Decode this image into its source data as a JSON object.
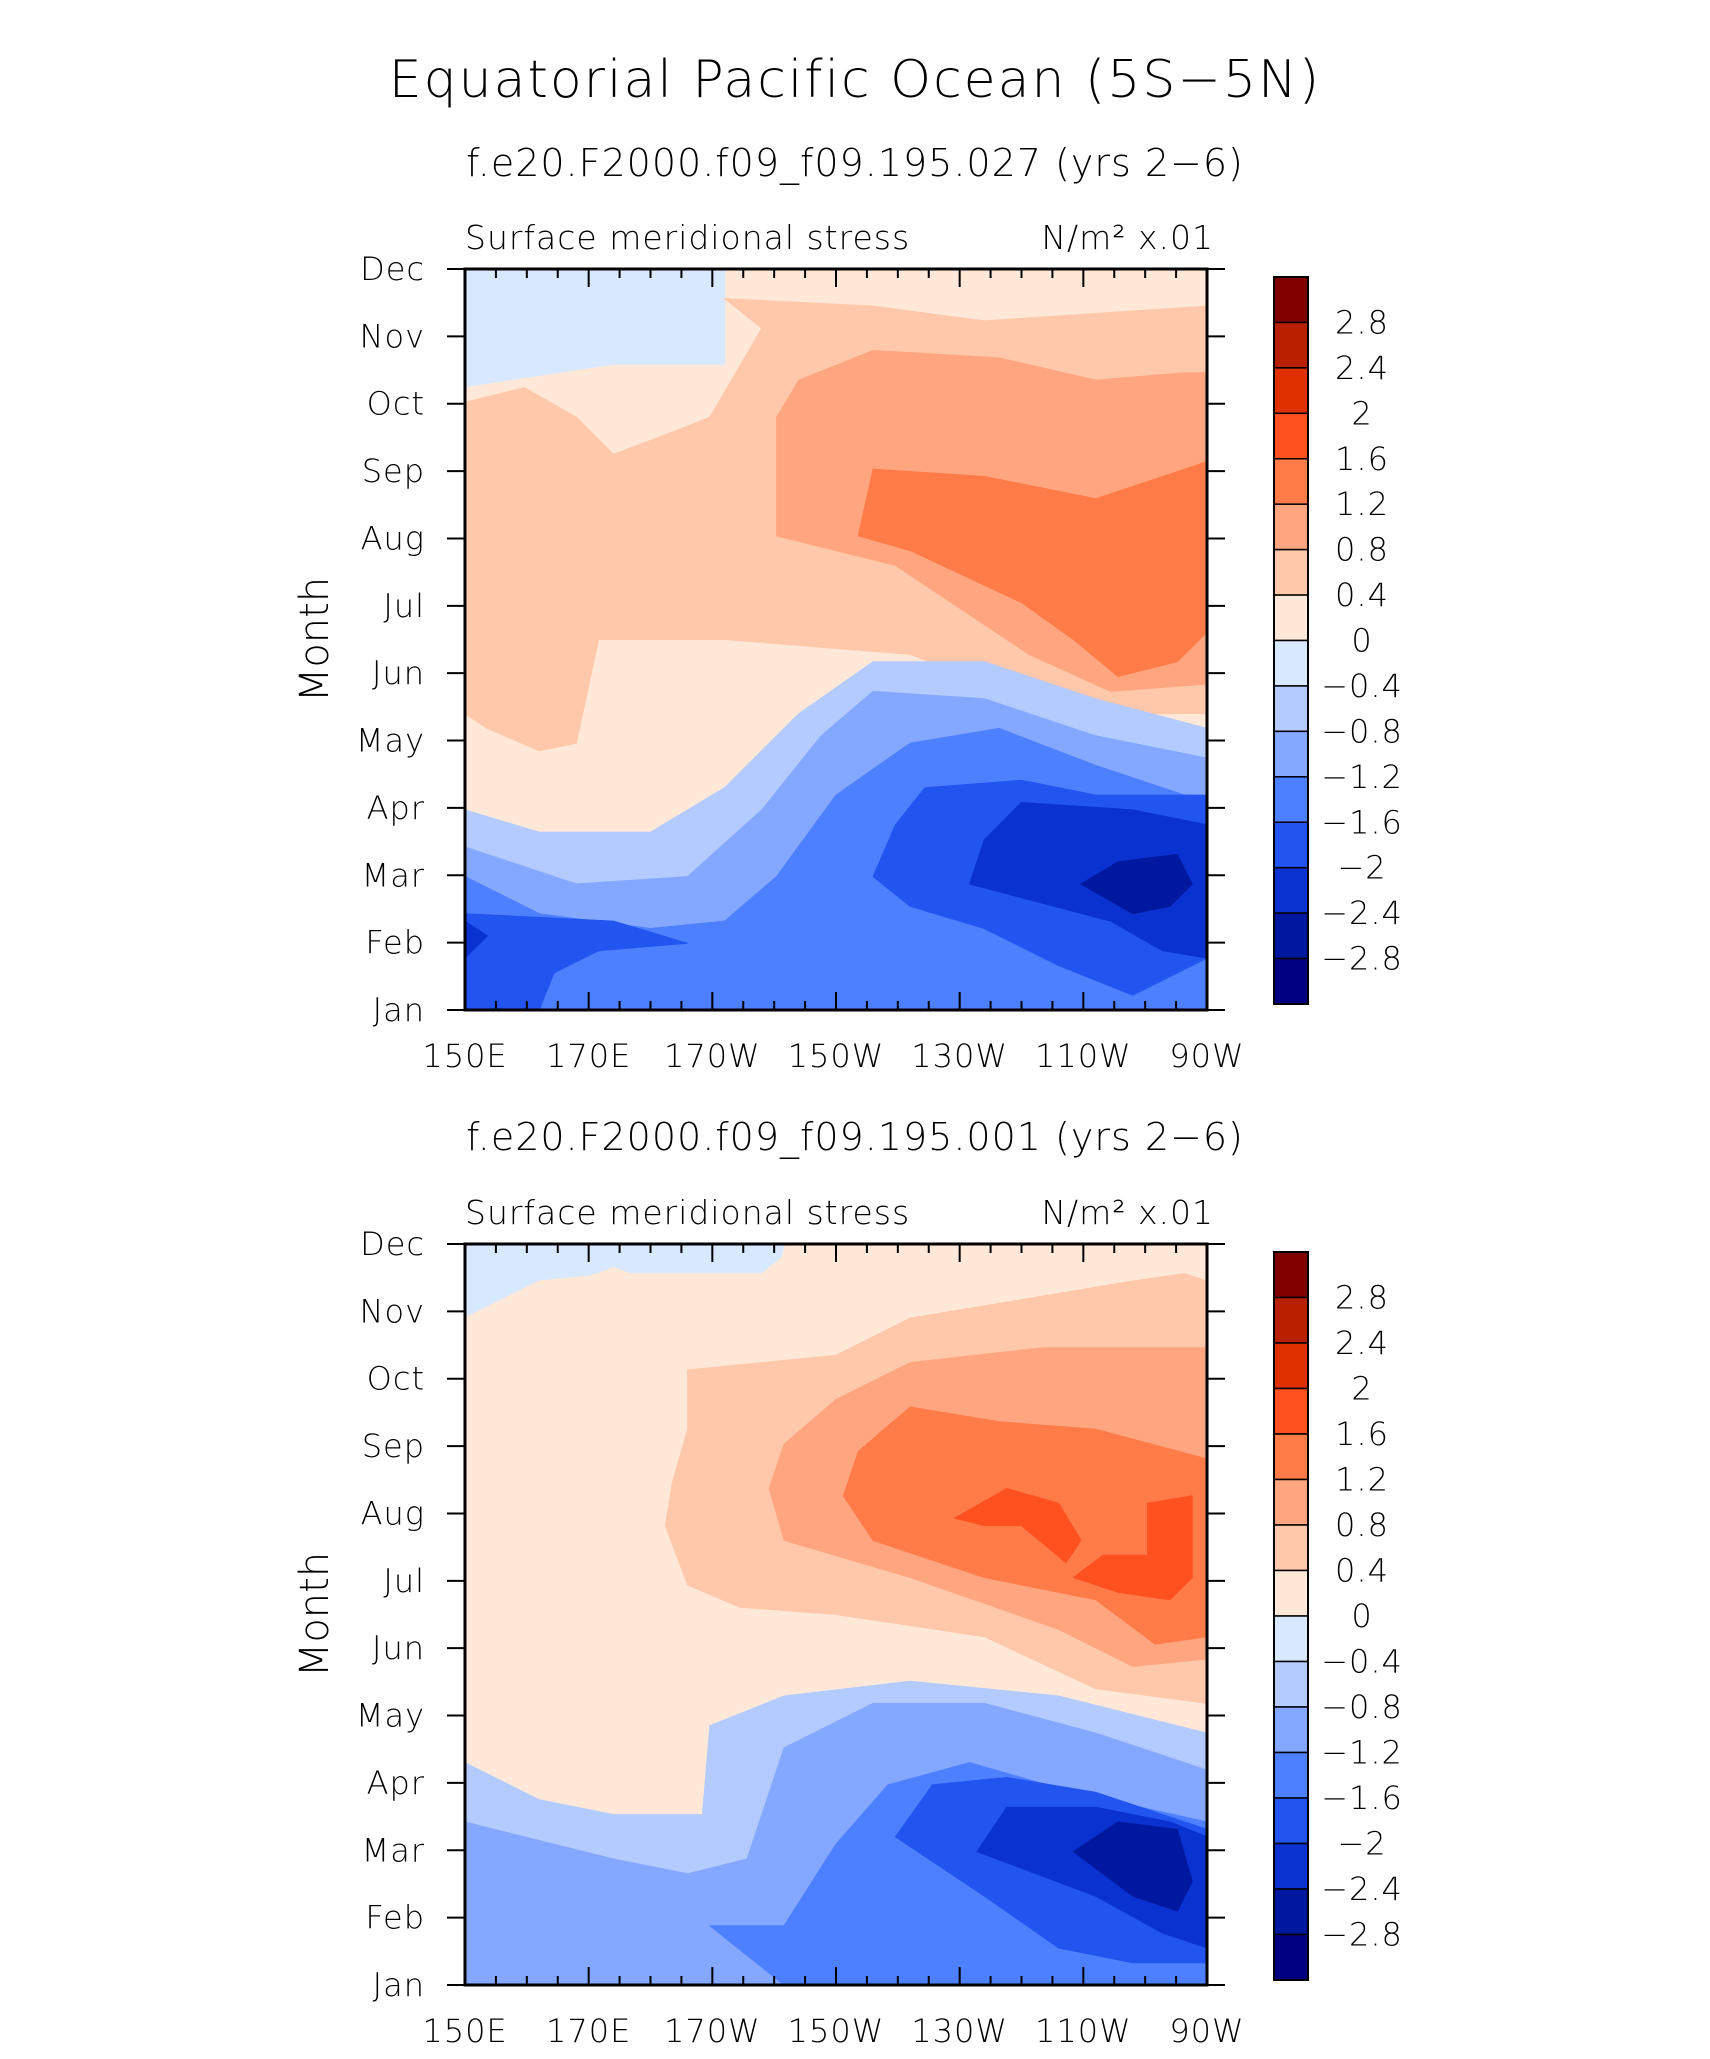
{
  "figure_title": "Equatorial Pacific Ocean (5S−5N)",
  "units": "N/m² x.01",
  "chart_data": [
    {
      "type": "heatmap",
      "title": "f.e20.F2000.f09_f09.195.027 (yrs 2−6)",
      "variable": "Surface meridional stress",
      "units": "N/m² x.01",
      "ylabel": "Month",
      "xlabel": "",
      "xlim": [
        150,
        270
      ],
      "x_tick_values": [
        150,
        170,
        190,
        210,
        230,
        250,
        270
      ],
      "x_tick_labels": [
        "150E",
        "170E",
        "170W",
        "150W",
        "130W",
        "110W",
        "90W"
      ],
      "y_tick_labels": [
        "Jan",
        "Feb",
        "Mar",
        "Apr",
        "May",
        "Jun",
        "Jul",
        "Aug",
        "Sep",
        "Oct",
        "Nov",
        "Dec"
      ],
      "contour_levels": [
        -2.8,
        -2.4,
        -2,
        -1.6,
        -1.2,
        -0.8,
        -0.4,
        0,
        0.4,
        0.8,
        1.2,
        1.6,
        2,
        2.4,
        2.8
      ],
      "features": [
        {
          "label": "max positive (Aug, ~110W-90W)",
          "value": 1.4
        },
        {
          "label": "min negative (Mar, ~100W)",
          "value": -2.6
        },
        {
          "label": "Feb, 150E",
          "value": -1.7
        }
      ]
    },
    {
      "type": "heatmap",
      "title": "f.e20.F2000.f09_f09.195.001 (yrs 2−6)",
      "variable": "Surface meridional stress",
      "units": "N/m² x.01",
      "ylabel": "Month",
      "xlabel": "",
      "xlim": [
        150,
        270
      ],
      "x_tick_values": [
        150,
        170,
        190,
        210,
        230,
        250,
        270
      ],
      "x_tick_labels": [
        "150E",
        "170E",
        "170W",
        "150W",
        "130W",
        "110W",
        "90W"
      ],
      "y_tick_labels": [
        "Jan",
        "Feb",
        "Mar",
        "Apr",
        "May",
        "Jun",
        "Jul",
        "Aug",
        "Sep",
        "Oct",
        "Nov",
        "Dec"
      ],
      "contour_levels": [
        -2.8,
        -2.4,
        -2,
        -1.6,
        -1.2,
        -0.8,
        -0.4,
        0,
        0.4,
        0.8,
        1.2,
        1.6,
        2,
        2.4,
        2.8
      ],
      "features": [
        {
          "label": "max positive (Aug, ~120W)",
          "value": 1.8
        },
        {
          "label": "max positive (Jul, ~95W)",
          "value": 1.7
        },
        {
          "label": "min negative (Mar, ~100W)",
          "value": -2.5
        }
      ]
    }
  ],
  "colorbar": {
    "labels": [
      "2.8",
      "2.4",
      "2",
      "1.6",
      "1.2",
      "0.8",
      "0.4",
      "0",
      "−0.4",
      "−0.8",
      "−1.2",
      "−1.6",
      "−2",
      "−2.4",
      "−2.8"
    ],
    "colors": [
      "#800000",
      "#b82000",
      "#e03000",
      "#ff5020",
      "#ff7b48",
      "#ffa680",
      "#ffc8aa",
      "#ffe8d8",
      "#d8e8ff",
      "#b3cbff",
      "#84a8ff",
      "#4d80ff",
      "#2255f0",
      "#0a32d0",
      "#0018a0",
      "#000080"
    ]
  }
}
